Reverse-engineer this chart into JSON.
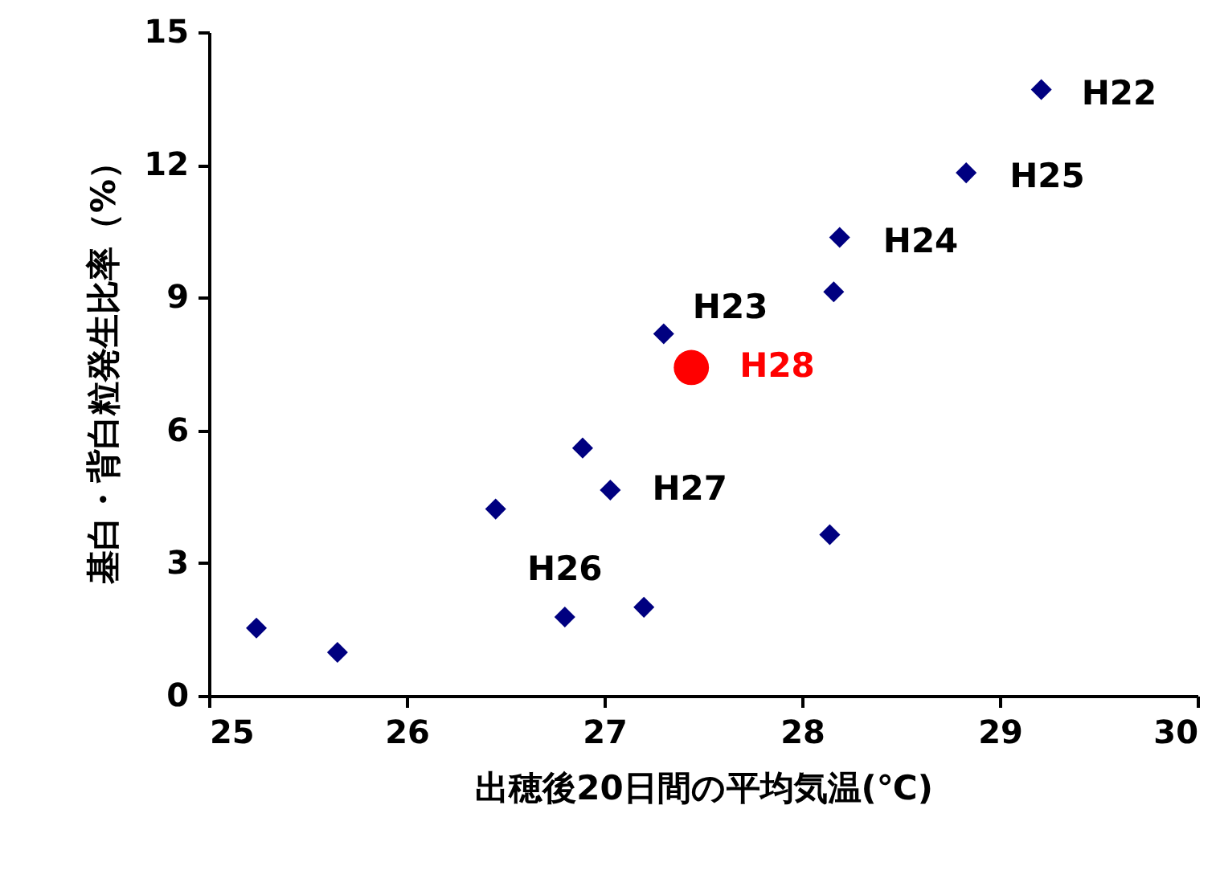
{
  "chart_data": {
    "type": "scatter",
    "xlabel": "出穂後20日間の平均気温(℃)",
    "ylabel": "基白・背白粒発生比率（%）",
    "xlim": [
      25,
      30
    ],
    "xticks": [
      25,
      26,
      27,
      28,
      29,
      30
    ],
    "ylim": [
      0,
      15
    ],
    "yticks": [
      0,
      3,
      6,
      9,
      12,
      15
    ],
    "grid": false,
    "series": [
      {
        "color": "#000080",
        "marker": "diamond",
        "x": [
          25.24,
          25.65,
          26.45,
          26.89,
          27.03,
          26.8,
          27.2,
          27.3,
          28.14,
          28.16,
          28.19,
          28.83,
          29.21
        ],
        "values": [
          1.53,
          0.98,
          4.22,
          5.6,
          4.65,
          1.78,
          2.0,
          8.18,
          3.64,
          9.13,
          10.36,
          11.82,
          13.7
        ]
      },
      {
        "name": "H28",
        "color": "#ff0000",
        "marker": "circle",
        "x": [
          27.44
        ],
        "values": [
          7.42
        ]
      }
    ],
    "annotations": [
      {
        "text": "H22",
        "x": 29.21,
        "y": 13.7
      },
      {
        "text": "H25",
        "x": 28.83,
        "y": 11.82
      },
      {
        "text": "H24",
        "x": 28.19,
        "y": 10.36
      },
      {
        "text": "H23",
        "x": 27.3,
        "y": 8.18
      },
      {
        "text": "H27",
        "x": 27.03,
        "y": 4.65
      },
      {
        "text": "H26",
        "x": 26.8,
        "y": 1.78
      }
    ]
  }
}
